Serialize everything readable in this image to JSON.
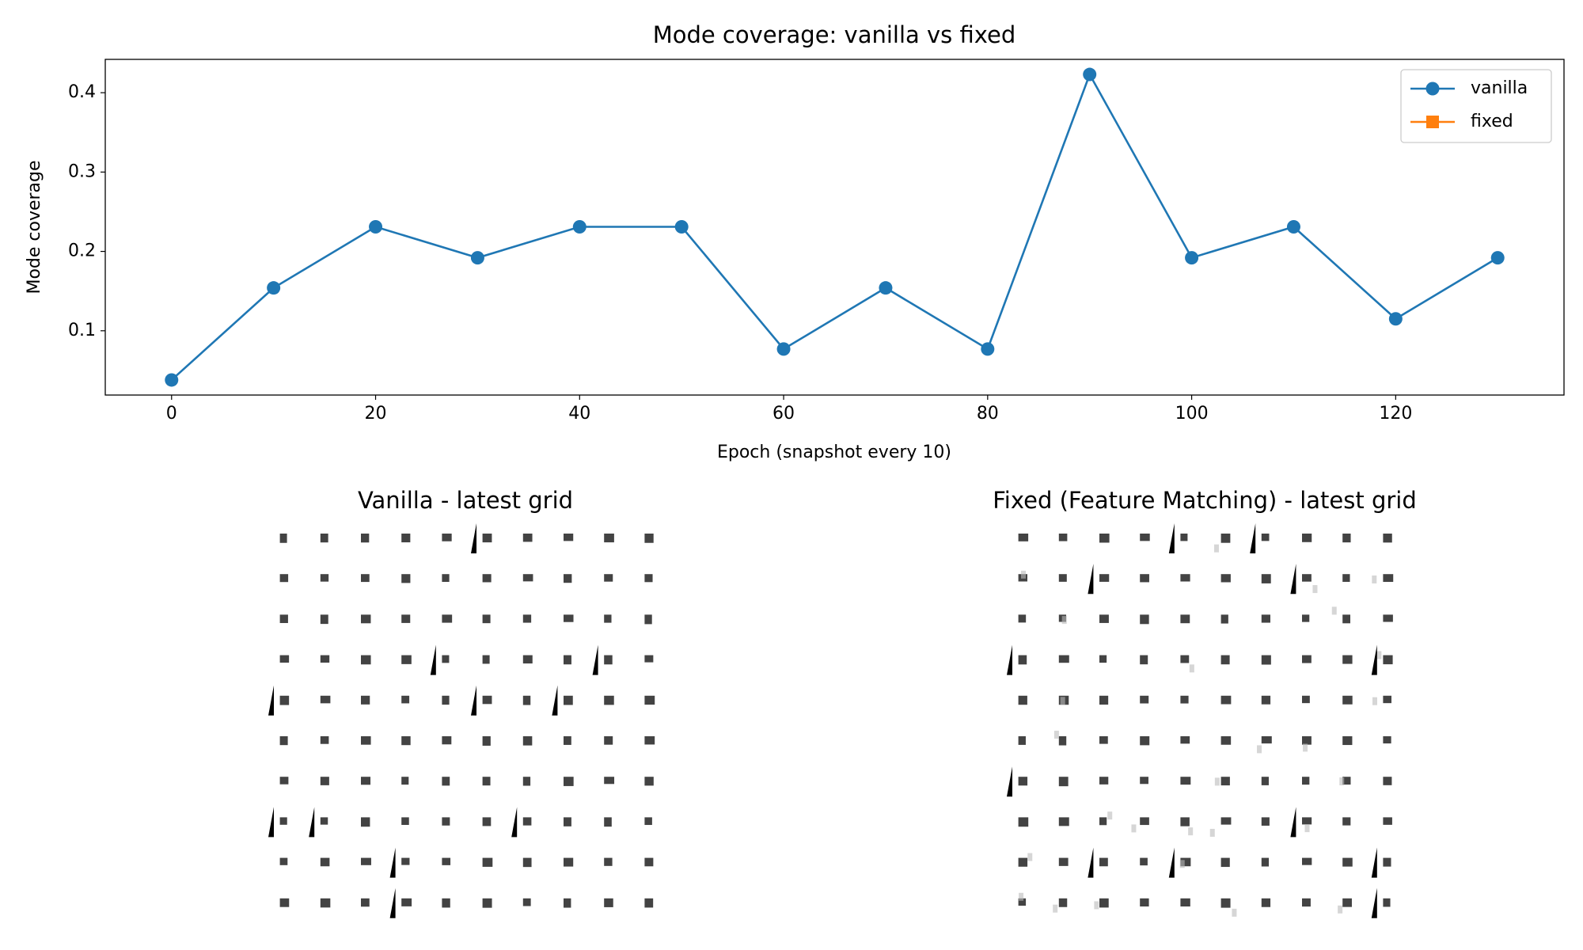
{
  "chart_data": {
    "type": "line",
    "title": "Mode coverage: vanilla vs fixed",
    "xlabel": "Epoch (snapshot every 10)",
    "ylabel": "Mode coverage",
    "x": [
      0,
      10,
      20,
      30,
      40,
      50,
      60,
      70,
      80,
      90,
      100,
      110,
      120,
      130
    ],
    "series": [
      {
        "name": "vanilla",
        "color": "#1f77b4",
        "marker": "circle",
        "values": [
          0.038,
          0.154,
          0.231,
          0.192,
          0.231,
          0.231,
          0.077,
          0.154,
          0.077,
          0.423,
          0.192,
          0.231,
          0.115,
          0.192
        ]
      },
      {
        "name": "fixed",
        "color": "#ff7f0e",
        "marker": "square",
        "values": [
          null,
          null,
          null,
          null,
          null,
          null,
          null,
          null,
          null,
          null,
          null,
          null,
          null,
          null
        ]
      }
    ],
    "xlim": [
      -6.5,
      136.5
    ],
    "xticks": [
      0,
      20,
      40,
      60,
      80,
      100,
      120
    ],
    "ylim": [
      0.019,
      0.442
    ],
    "yticks": [
      0.1,
      0.2,
      0.3,
      0.4
    ],
    "grid": false,
    "legend": "upper right"
  },
  "panels": [
    {
      "title": "Vanilla - latest grid"
    },
    {
      "title": "Fixed (Feature Matching) - latest grid"
    }
  ]
}
